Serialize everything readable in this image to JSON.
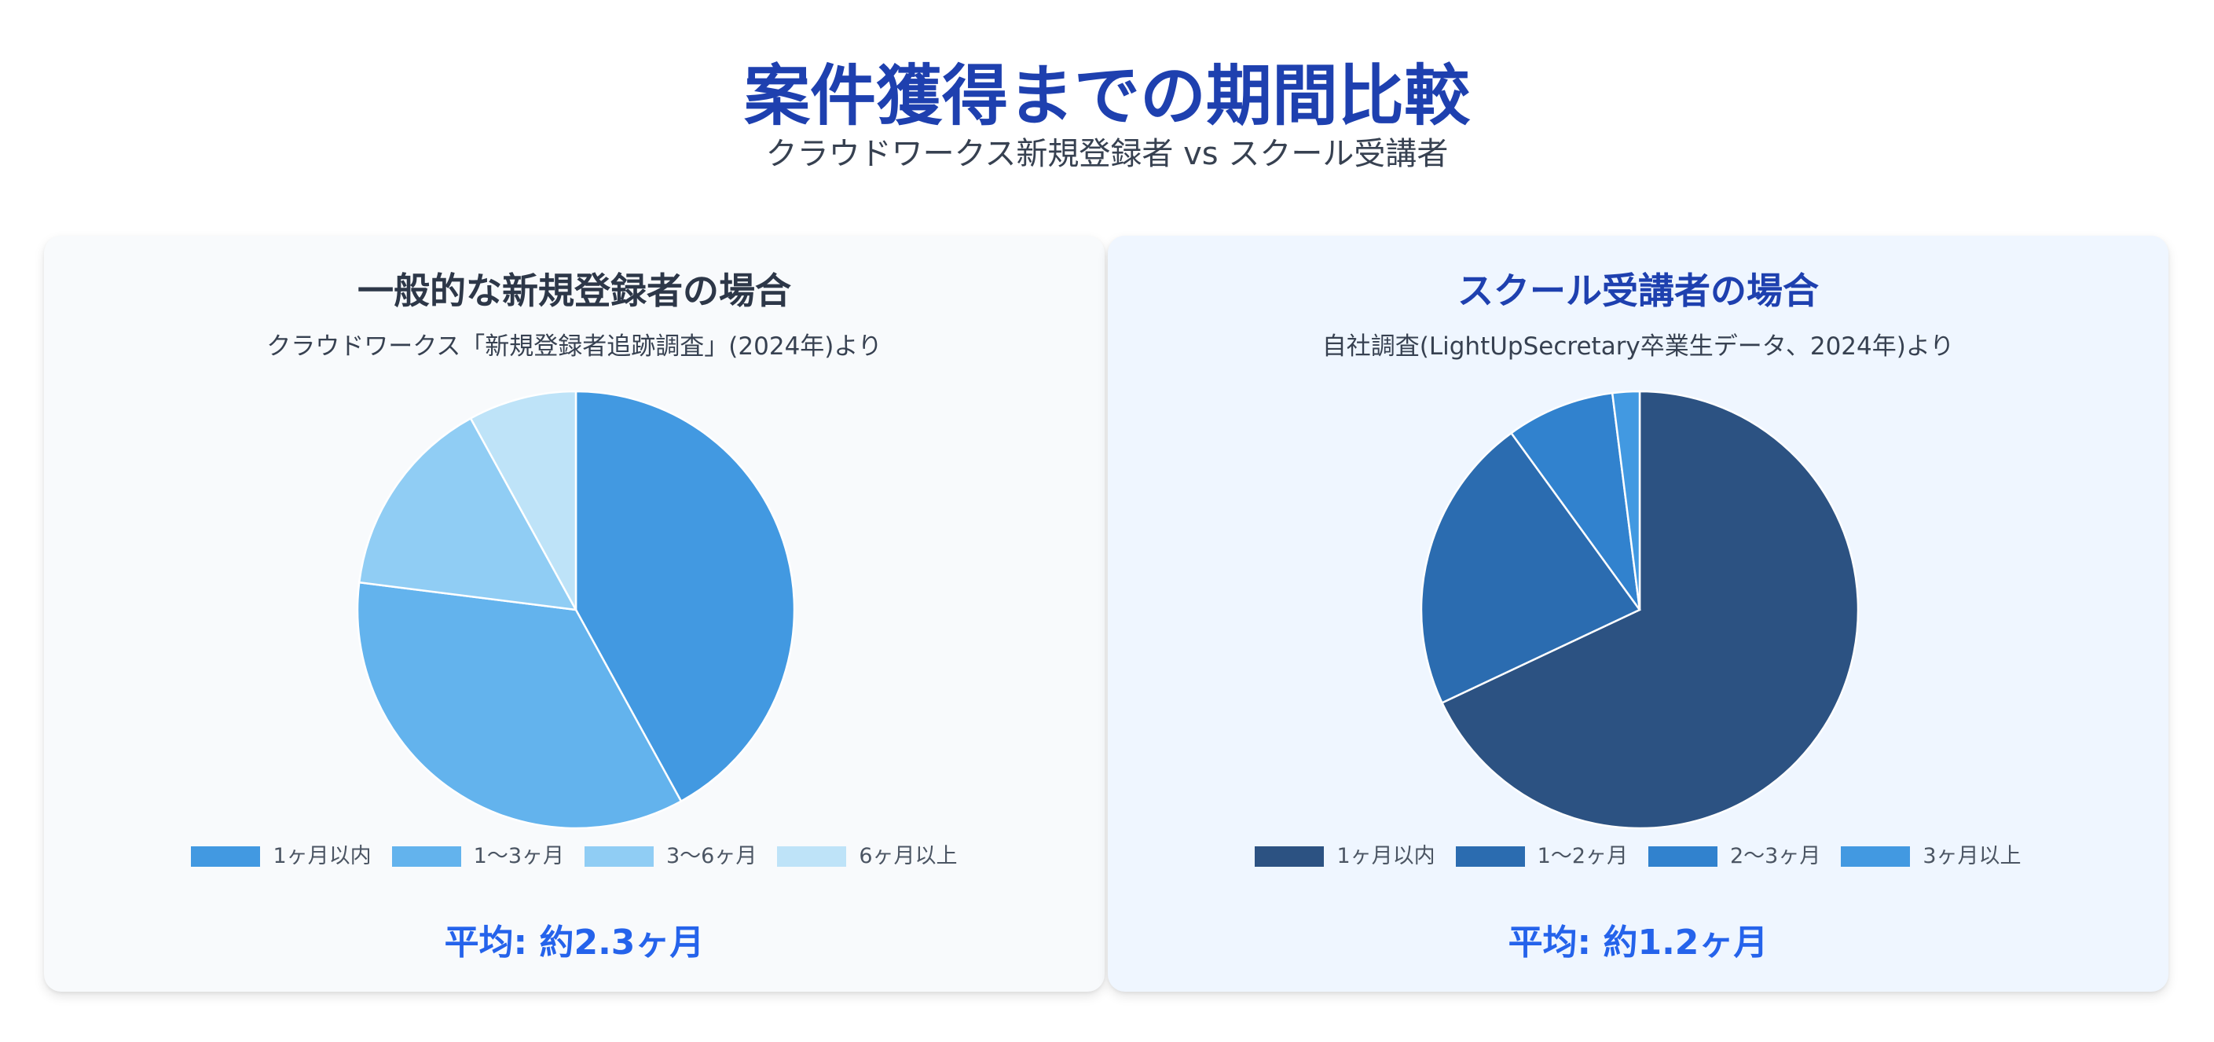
{
  "header": {
    "title": "案件獲得までの期間比較",
    "subtitle": "クラウドワークス新規登録者 vs スクール受講者"
  },
  "panels": [
    {
      "title": "一般的な新規登録者の場合",
      "source": "クラウドワークス「新規登録者追跡調査」(2024年)より",
      "average": "平均: 約2.3ヶ月"
    },
    {
      "title": "スクール受講者の場合",
      "source": "自社調査(LightUpSecretary卒業生データ、2024年)より",
      "average": "平均: 約1.2ヶ月"
    }
  ],
  "chart_data": [
    {
      "type": "pie",
      "title": "一般的な新規登録者の場合",
      "categories": [
        "1ヶ月以内",
        "1〜3ヶ月",
        "3〜6ヶ月",
        "6ヶ月以上"
      ],
      "values": [
        42,
        35,
        15,
        8
      ],
      "colors": [
        "#4299e1",
        "#63b3ed",
        "#90cdf4",
        "#bee3f8"
      ],
      "legend_position": "bottom"
    },
    {
      "type": "pie",
      "title": "スクール受講者の場合",
      "categories": [
        "1ヶ月以内",
        "1〜2ヶ月",
        "2〜3ヶ月",
        "3ヶ月以上"
      ],
      "values": [
        68,
        22,
        8,
        2
      ],
      "colors": [
        "#2c5282",
        "#2b6cb0",
        "#3182ce",
        "#4299e1"
      ],
      "legend_position": "bottom"
    }
  ]
}
